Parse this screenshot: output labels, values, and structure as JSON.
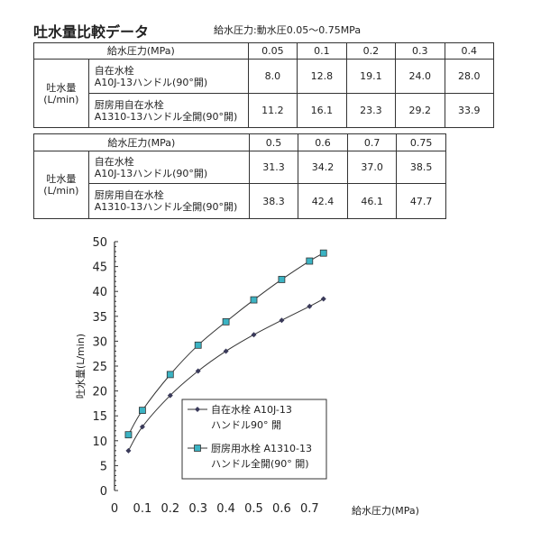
{
  "title": "吐水量比較データ",
  "subtitle": "給水圧力:動水圧0.05〜0.75MPa",
  "tables": [
    {
      "header_label": "給水圧力(MPa)",
      "pressures": [
        "0.05",
        "0.1",
        "0.2",
        "0.3",
        "0.4"
      ],
      "row_group": "吐水量\n(L/min)",
      "rows": [
        {
          "name": "自在水栓\nA10J-13ハンドル(90°開)",
          "values": [
            "8.0",
            "12.8",
            "19.1",
            "24.0",
            "28.0"
          ]
        },
        {
          "name": "厨房用自在水栓\nA1310-13ハンドル全開(90°開)",
          "values": [
            "11.2",
            "16.1",
            "23.3",
            "29.2",
            "33.9"
          ]
        }
      ]
    },
    {
      "header_label": "給水圧力(MPa)",
      "pressures": [
        "0.5",
        "0.6",
        "0.7",
        "0.75"
      ],
      "row_group": "吐水量\n(L/min)",
      "rows": [
        {
          "name": "自在水栓\nA10J-13ハンドル(90°開)",
          "values": [
            "31.3",
            "34.2",
            "37.0",
            "38.5"
          ]
        },
        {
          "name": "厨房用自在水栓\nA1310-13ハンドル全開(90°開)",
          "values": [
            "38.3",
            "42.4",
            "46.1",
            "47.7"
          ]
        }
      ]
    }
  ],
  "chart_data": {
    "type": "line",
    "xlabel": "給水圧力(MPa)",
    "ylabel": "吐水量(L/min)",
    "xlim": [
      0,
      0.75
    ],
    "ylim": [
      0,
      50
    ],
    "xticks": [
      "0",
      "0.1",
      "0.2",
      "0.3",
      "0.4",
      "0.5",
      "0.6",
      "0.7"
    ],
    "yticks": [
      "0",
      "5",
      "10",
      "15",
      "20",
      "25",
      "30",
      "35",
      "40",
      "45",
      "50"
    ],
    "x": [
      0.05,
      0.1,
      0.2,
      0.3,
      0.4,
      0.5,
      0.6,
      0.7,
      0.75
    ],
    "grid": false,
    "legend_position": "bottom-right",
    "series": [
      {
        "name": "自在水栓 A10J-13\nハンドル90° 開",
        "marker": "diamond",
        "color": "#3a3a5a",
        "values": [
          8.0,
          12.8,
          19.1,
          24.0,
          28.0,
          31.3,
          34.2,
          37.0,
          38.5
        ]
      },
      {
        "name": "厨房用水栓 A1310-13\nハンドル全開(90° 開)",
        "marker": "square",
        "color": "#3bb3c3",
        "values": [
          11.2,
          16.1,
          23.3,
          29.2,
          33.9,
          38.3,
          42.4,
          46.1,
          47.7
        ]
      }
    ]
  }
}
